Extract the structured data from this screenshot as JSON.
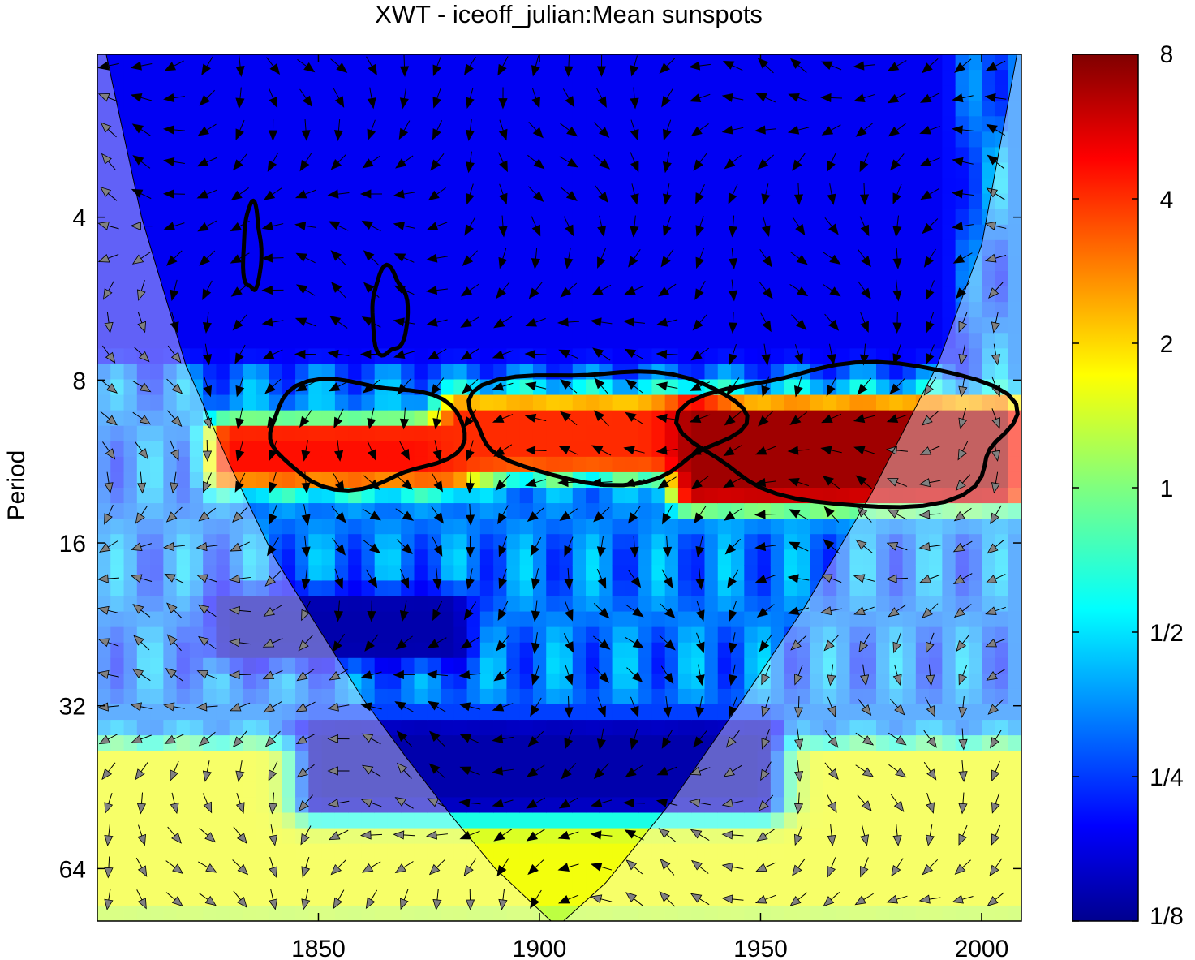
{
  "chart_data": {
    "type": "heatmap",
    "title": "XWT - iceoff_julian:Mean sunspots",
    "xlabel": "",
    "ylabel": "Period",
    "xlim": [
      1800,
      2009
    ],
    "period_range": [
      2,
      80
    ],
    "y_scale": "log2",
    "y_reversed": true,
    "x_ticks": [
      1850,
      1900,
      1950,
      2000
    ],
    "y_ticks": [
      {
        "label": "4",
        "value": 4
      },
      {
        "label": "8",
        "value": 8
      },
      {
        "label": "16",
        "value": 16
      },
      {
        "label": "32",
        "value": 32
      },
      {
        "label": "64",
        "value": 64
      }
    ],
    "colorbar": {
      "scale": "log2",
      "range": [
        0.125,
        8
      ],
      "colormap": "jet",
      "ticks": [
        {
          "label": "1/8",
          "value": 0.125
        },
        {
          "label": "1/4",
          "value": 0.25
        },
        {
          "label": "1/2",
          "value": 0.5
        },
        {
          "label": "1",
          "value": 1
        },
        {
          "label": "2",
          "value": 2
        },
        {
          "label": "4",
          "value": 4
        },
        {
          "label": "8",
          "value": 8
        }
      ]
    },
    "cone_of_influence": [
      [
        1802,
        2.0
      ],
      [
        1810,
        4.0
      ],
      [
        1820,
        7.5
      ],
      [
        1830,
        11.5
      ],
      [
        1840,
        17
      ],
      [
        1850,
        23
      ],
      [
        1860,
        31
      ],
      [
        1870,
        40
      ],
      [
        1880,
        51
      ],
      [
        1890,
        64
      ],
      [
        1904,
        82
      ],
      [
        1915,
        68
      ],
      [
        1930,
        48
      ],
      [
        1945,
        32
      ],
      [
        1960,
        21
      ],
      [
        1975,
        13
      ],
      [
        1990,
        7.5
      ],
      [
        2000,
        4.5
      ],
      [
        2008,
        2.0
      ]
    ],
    "power_features": [
      {
        "x": [
          1830,
          1880
        ],
        "period": [
          10.2,
          11.8
        ],
        "power": 4.5
      },
      {
        "x": [
          1882,
          1935
        ],
        "period": [
          9.2,
          11.2
        ],
        "power": 4.0
      },
      {
        "x": [
          1935,
          2005
        ],
        "period": [
          9.3,
          12.8
        ],
        "power": 7.0
      },
      {
        "x": [
          1800,
          2009
        ],
        "period": [
          40,
          75
        ],
        "power": 1.6
      },
      {
        "x": [
          1850,
          1950
        ],
        "period": [
          36,
          48
        ],
        "power": 0.15
      },
      {
        "x": [
          1830,
          1880
        ],
        "period": [
          21,
          25
        ],
        "power": 0.15
      },
      {
        "x": [
          1800,
          1990
        ],
        "period": [
          2,
          7
        ],
        "power": 0.2
      }
    ],
    "significant_regions": [
      {
        "x": [
          1833,
          1837
        ],
        "period": [
          3.8,
          5.5
        ]
      },
      {
        "x": [
          1862,
          1870
        ],
        "period": [
          5.0,
          7.2
        ]
      },
      {
        "x": [
          1838,
          1882
        ],
        "period": [
          8.0,
          12.5
        ]
      },
      {
        "x": [
          1884,
          1945
        ],
        "period": [
          7.6,
          12.2
        ]
      },
      {
        "x": [
          1935,
          2008
        ],
        "period": [
          7.4,
          13.6
        ]
      }
    ]
  }
}
